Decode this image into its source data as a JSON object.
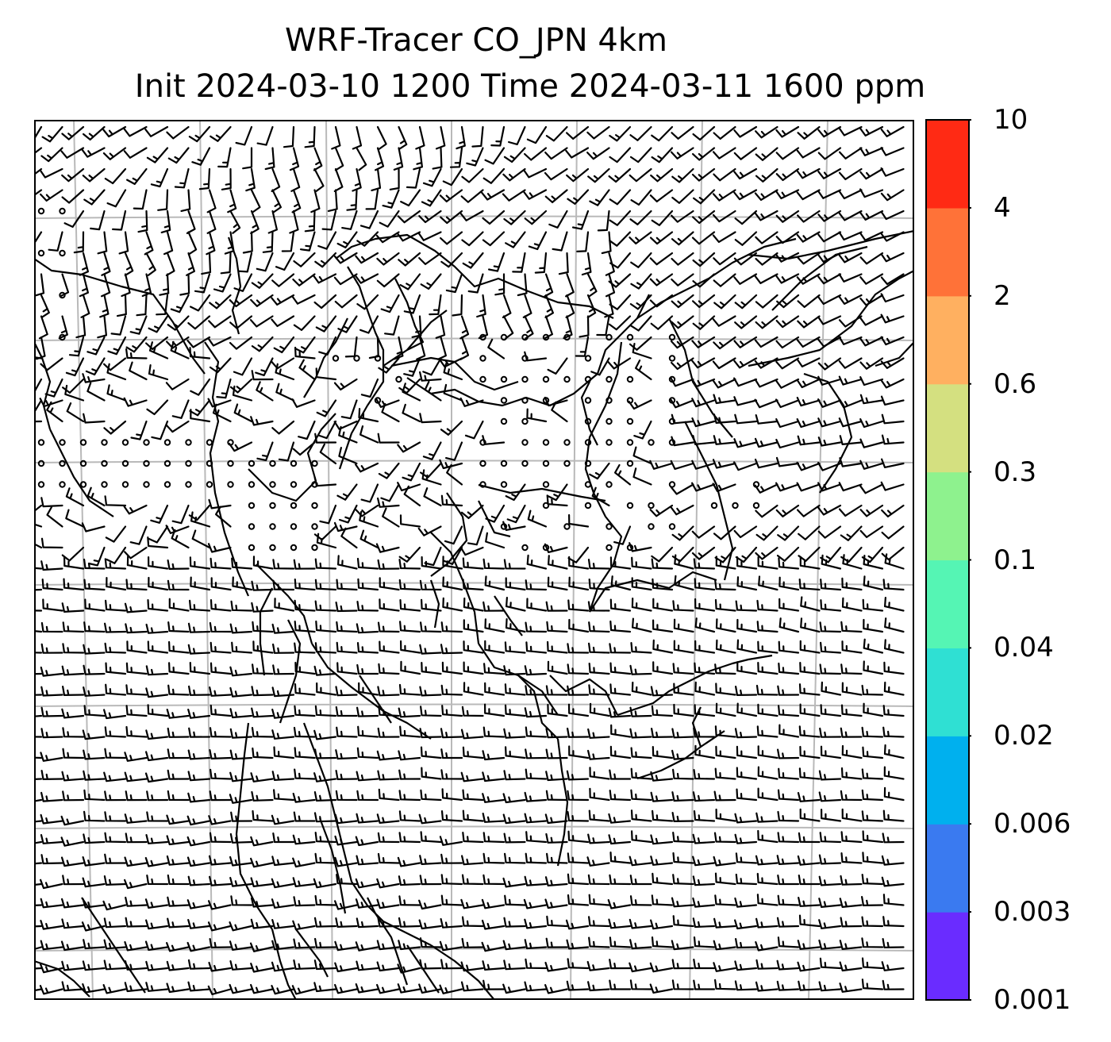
{
  "title": {
    "line1": "WRF-Tracer CO_JPN 4km",
    "line2": "Init 2024-03-10 1200 Time 2024-03-11 1600 ppm"
  },
  "colorbar": {
    "ticks": [
      "0.001",
      "0.003",
      "0.006",
      "0.02",
      "0.04",
      "0.1",
      "0.3",
      "0.6",
      "2",
      "4",
      "10"
    ],
    "colors": [
      "#6a2cff",
      "#3a7af0",
      "#00b0ee",
      "#2fe0d3",
      "#55f5b4",
      "#8ef28e",
      "#d4e080",
      "#ffb060",
      "#ff7238",
      "#ff2a14"
    ]
  },
  "map": {
    "grid_color": "#b9b9b9",
    "coast_color": "#000000",
    "calm_regions": "Calm (circle) wind markers across central band of domain"
  }
}
